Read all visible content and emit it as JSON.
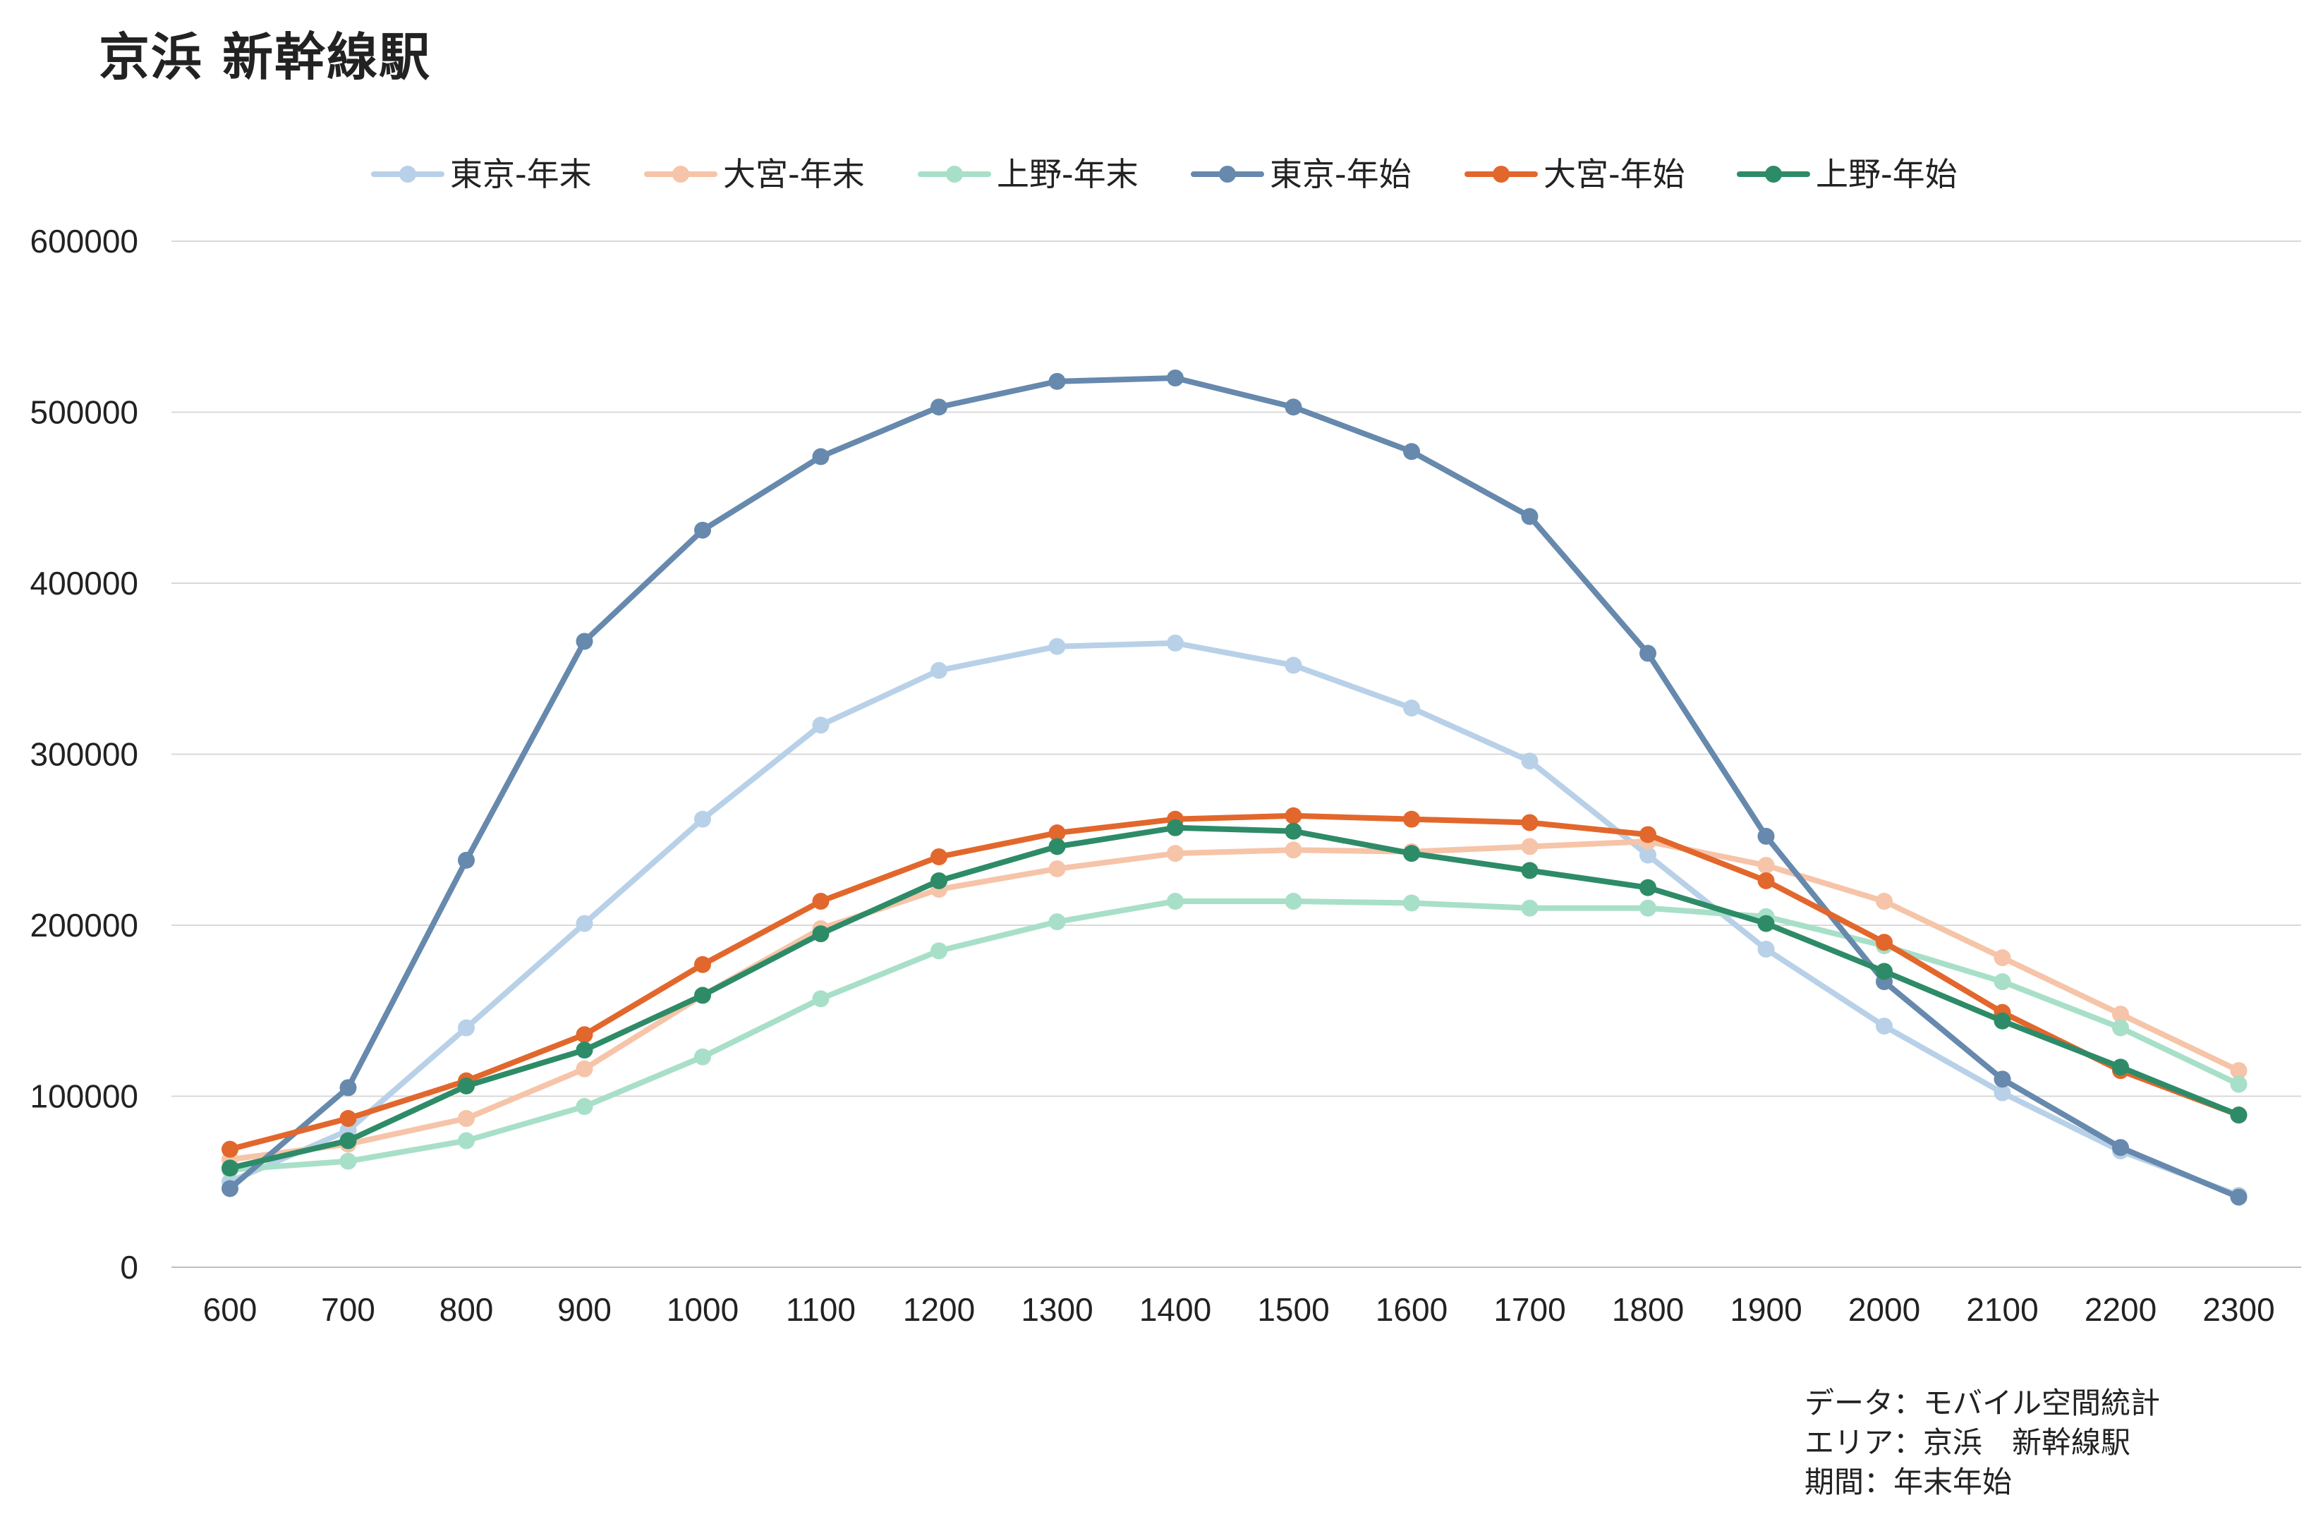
{
  "title": "京浜 新幹線駅",
  "chart_data": {
    "type": "line",
    "title": "京浜 新幹線駅",
    "xlabel": "",
    "ylabel": "",
    "ylim": [
      0,
      600000
    ],
    "y_ticks": [
      "0",
      "100000",
      "200000",
      "300000",
      "400000",
      "500000",
      "600000"
    ],
    "grid": true,
    "legend_position": "top",
    "categories": [
      "600",
      "700",
      "800",
      "900",
      "1000",
      "1100",
      "1200",
      "1300",
      "1400",
      "1500",
      "1600",
      "1700",
      "1800",
      "1900",
      "2000",
      "2100",
      "2200",
      "2300"
    ],
    "series": [
      {
        "name": "東京-年末",
        "color": "#b8d1e8",
        "values": [
          50000,
          80000,
          140000,
          201000,
          262000,
          317000,
          349000,
          363000,
          365000,
          352000,
          327000,
          296000,
          241000,
          186000,
          141000,
          102000,
          68000,
          42000
        ]
      },
      {
        "name": "大宮-年末",
        "color": "#f6c4a8",
        "values": [
          63000,
          72000,
          87000,
          116000,
          159000,
          198000,
          221000,
          233000,
          242000,
          244000,
          243000,
          246000,
          249000,
          235000,
          214000,
          181000,
          148000,
          115000
        ]
      },
      {
        "name": "上野-年末",
        "color": "#a8dfc8",
        "values": [
          57000,
          62000,
          74000,
          94000,
          123000,
          157000,
          185000,
          202000,
          214000,
          214000,
          213000,
          210000,
          210000,
          205000,
          188000,
          167000,
          140000,
          107000
        ]
      },
      {
        "name": "東京-年始",
        "color": "#6689ad",
        "values": [
          46000,
          105000,
          238000,
          366000,
          431000,
          474000,
          503000,
          518000,
          520000,
          503000,
          477000,
          439000,
          359000,
          252000,
          167000,
          110000,
          70000,
          41000
        ]
      },
      {
        "name": "大宮-年始",
        "color": "#e2672c",
        "values": [
          69000,
          87000,
          109000,
          136000,
          177000,
          214000,
          240000,
          254000,
          262000,
          264000,
          262000,
          260000,
          253000,
          226000,
          190000,
          149000,
          115000,
          89000
        ]
      },
      {
        "name": "上野-年始",
        "color": "#2e8b68",
        "values": [
          58000,
          74000,
          106000,
          127000,
          159000,
          195000,
          226000,
          246000,
          257000,
          255000,
          242000,
          232000,
          222000,
          201000,
          173000,
          144000,
          117000,
          89000
        ]
      }
    ]
  },
  "source_note": {
    "line1": "データ：モバイル空間統計",
    "line2": "エリア：京浜　新幹線駅",
    "line3": "期間：年末年始"
  }
}
